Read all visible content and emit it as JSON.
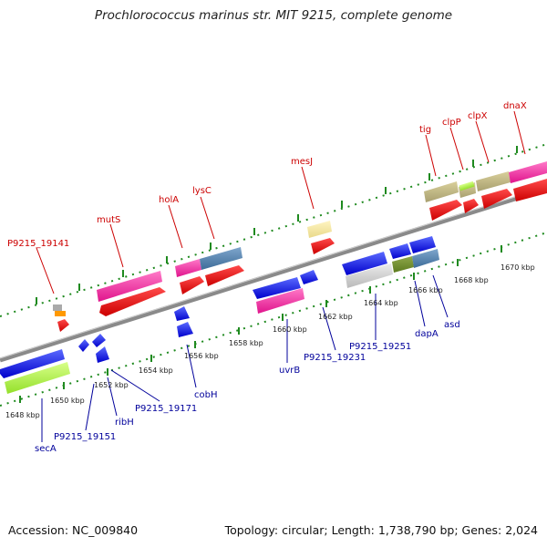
{
  "title": "Prochlorococcus marinus str. MIT 9215, complete genome",
  "footer": {
    "accession": "Accession: NC_009840",
    "stats": "Topology: circular; Length: 1,738,790 bp; Genes: 2,024"
  },
  "scale": {
    "ticks": [
      "1648 kbp",
      "1650 kbp",
      "1652 kbp",
      "1654 kbp",
      "1656 kbp",
      "1658 kbp",
      "1660 kbp",
      "1662 kbp",
      "1664 kbp",
      "1666 kbp",
      "1668 kbp",
      "1670 kbp"
    ]
  },
  "genes_top": [
    "P9215_19141",
    "mutS",
    "holA",
    "lysC",
    "mesJ",
    "tig",
    "clpP",
    "clpX",
    "dnaX"
  ],
  "genes_bottom": [
    "secA",
    "P9215_19151",
    "ribH",
    "P9215_19171",
    "cobH",
    "uvrB",
    "P9215_19231",
    "P9215_19251",
    "dapA",
    "asd"
  ],
  "colors": {
    "label_top": "#cc0000",
    "label_bottom": "#00009b",
    "backbone": "#888888",
    "track_ticks": "#1f8a1f"
  }
}
